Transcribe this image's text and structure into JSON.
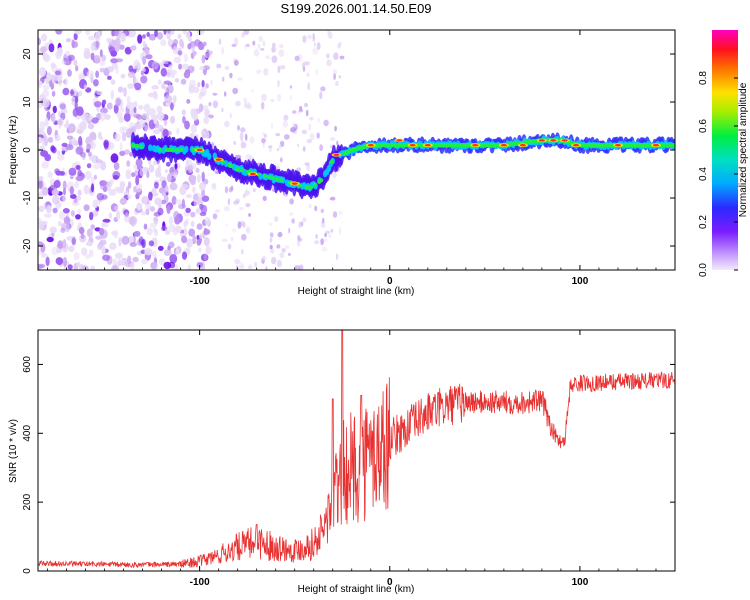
{
  "title": "S199.2026.001.14.50.E09",
  "chart_data": [
    {
      "type": "heatmap",
      "name": "spectrogram",
      "xlabel": "Height of straight line (km)",
      "ylabel": "Frequency (Hz)",
      "xlim": [
        -185,
        150
      ],
      "ylim": [
        -25,
        25
      ],
      "xticks": [
        -100,
        0,
        100
      ],
      "xtick_labels": [
        "-100",
        "0",
        "100"
      ],
      "yticks": [
        -20,
        -10,
        0,
        10,
        20
      ],
      "ytick_labels": [
        "-20",
        "-10",
        "0",
        "10",
        "20"
      ],
      "colorbar": {
        "label": "Normalized spectral amplitude",
        "range": [
          0.0,
          1.0
        ],
        "ticks": [
          0.0,
          0.2,
          0.4,
          0.6,
          0.8
        ],
        "tick_labels": [
          "0.0",
          "0.2",
          "0.4",
          "0.6",
          "0.8"
        ]
      },
      "ridge": {
        "x": [
          -135,
          -120,
          -110,
          -100,
          -90,
          -80,
          -70,
          -60,
          -50,
          -42,
          -35,
          -30,
          -25,
          -20,
          -10,
          0,
          10,
          20,
          40,
          60,
          80,
          90,
          100,
          120,
          150
        ],
        "freq": [
          1,
          0,
          0,
          0,
          -2,
          -4,
          -5,
          -6,
          -7,
          -8,
          -6,
          -2,
          -1,
          0,
          1,
          1,
          1,
          1,
          1,
          1,
          2,
          2,
          1,
          1,
          1
        ]
      }
    },
    {
      "type": "line",
      "name": "snr",
      "xlabel": "Height of straight line (km)",
      "ylabel": "SNR (10 * v/v)",
      "xlim": [
        -185,
        150
      ],
      "ylim": [
        0,
        700
      ],
      "xticks": [
        -100,
        0,
        100
      ],
      "xtick_labels": [
        "-100",
        "0",
        "100"
      ],
      "yticks": [
        0,
        200,
        400,
        600
      ],
      "ytick_labels": [
        "0",
        "200",
        "400",
        "600"
      ],
      "color": "#e83030",
      "trend": {
        "x": [
          -185,
          -160,
          -130,
          -110,
          -100,
          -90,
          -80,
          -70,
          -60,
          -50,
          -40,
          -35,
          -30,
          -27,
          -25,
          -20,
          -15,
          -10,
          -5,
          0,
          10,
          20,
          30,
          40,
          50,
          60,
          70,
          80,
          85,
          88,
          92,
          95,
          100,
          120,
          150
        ],
        "y": [
          22,
          20,
          18,
          20,
          28,
          45,
          70,
          85,
          70,
          60,
          80,
          120,
          200,
          250,
          280,
          300,
          310,
          330,
          350,
          380,
          420,
          460,
          480,
          490,
          490,
          490,
          490,
          495,
          420,
          380,
          380,
          540,
          545,
          550,
          555
        ]
      },
      "spikes": [
        {
          "x": -25,
          "y": 700
        },
        {
          "x": -30,
          "y": 500
        },
        {
          "x": -15,
          "y": 510
        },
        {
          "x": -70,
          "y": 135
        }
      ]
    }
  ]
}
